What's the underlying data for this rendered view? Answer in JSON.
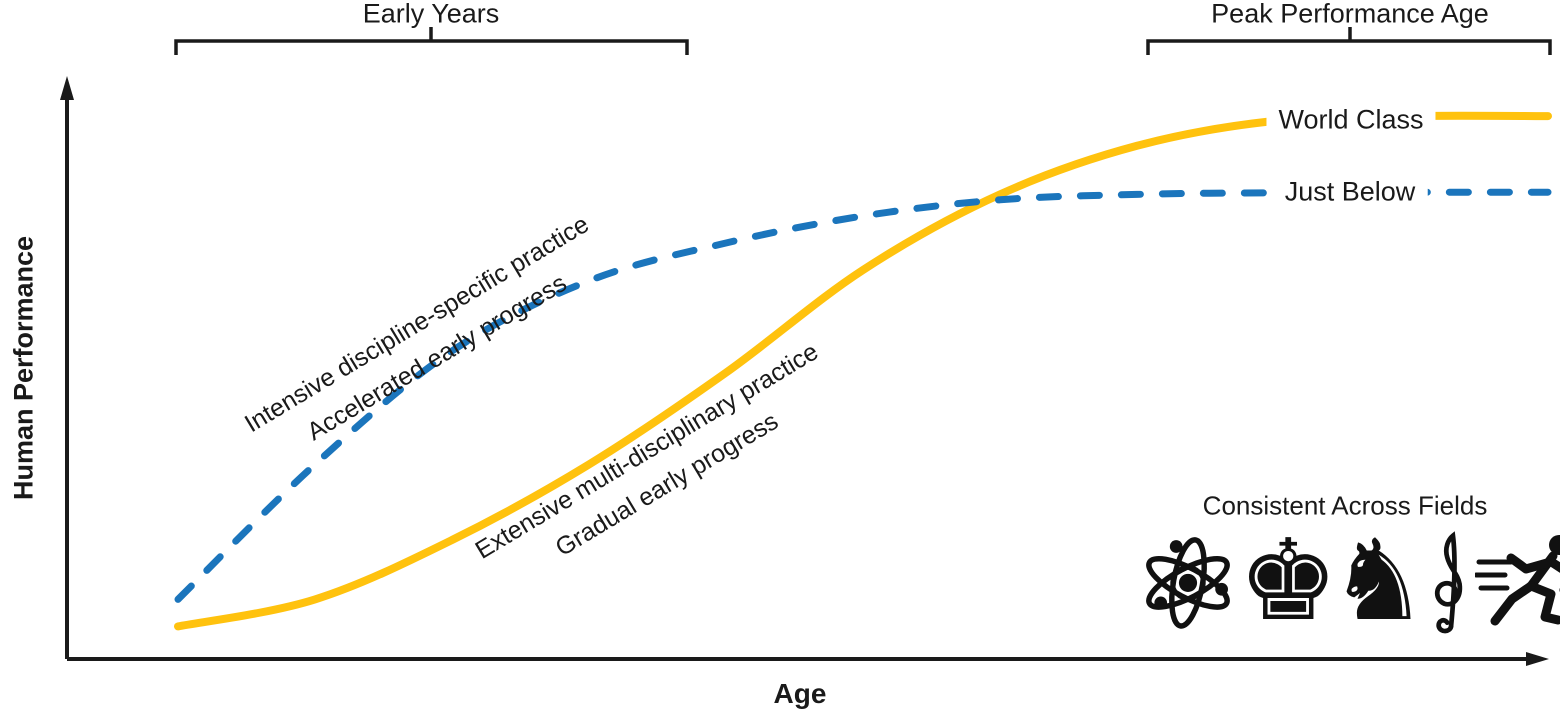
{
  "chart_data": {
    "type": "line",
    "title": "",
    "xlabel": "Age",
    "ylabel": "Human Performance",
    "axes_note": "conceptual diagram, no numeric ticks; x normalized 0-100 (age), y normalized 0-1 (performance)",
    "grid": false,
    "legend_position": "inline-right",
    "series": [
      {
        "name": "World Class",
        "style": "solid",
        "color": "#FFC20E",
        "annotation_lines": [
          "Extensive multi-disciplinary practice",
          "Gradual early progress"
        ],
        "x": [
          0,
          10,
          20,
          30,
          40,
          50,
          60,
          70,
          80,
          90,
          100
        ],
        "y": [
          0.04,
          0.09,
          0.2,
          0.34,
          0.51,
          0.7,
          0.84,
          0.93,
          0.976,
          0.985,
          0.985
        ]
      },
      {
        "name": "Just Below",
        "style": "dashed",
        "color": "#1B75BC",
        "annotation_lines": [
          "Intensive discipline-specific practice",
          "Accelerated early progress"
        ],
        "x": [
          0,
          10,
          20,
          30,
          40,
          50,
          60,
          70,
          80,
          90,
          100
        ],
        "y": [
          0.09,
          0.34,
          0.55,
          0.68,
          0.75,
          0.8,
          0.83,
          0.84,
          0.843,
          0.844,
          0.844
        ]
      }
    ],
    "annotations": [
      {
        "label": "Early Years",
        "type": "bracket",
        "x_range": [
          0,
          37
        ],
        "position": "top"
      },
      {
        "label": "Peak Performance Age",
        "type": "bracket",
        "x_range": [
          71,
          100
        ],
        "position": "top"
      },
      {
        "label": "Consistent Across Fields",
        "type": "icon-legend",
        "position": "bottom-right"
      }
    ]
  },
  "axes": {
    "x_label": "Age",
    "y_label": "Human Performance"
  },
  "brackets": {
    "early_years": "Early Years",
    "peak_performance": "Peak Performance Age"
  },
  "curve_labels": {
    "world_class": "World Class",
    "just_below": "Just Below"
  },
  "blue_note": {
    "line1": "Intensive discipline-specific practice",
    "line2": "Accelerated early progress"
  },
  "yellow_note": {
    "line1": "Extensive multi-disciplinary practice",
    "line2": "Gradual early progress"
  },
  "fields_legend": {
    "title": "Consistent Across Fields",
    "icons": [
      "atom-icon",
      "chess-icon",
      "treble-clef-icon",
      "runner-icon"
    ],
    "chess_king_glyph": "♚",
    "chess_knight_glyph": "♞"
  },
  "colors": {
    "world_class": "#FFC20E",
    "just_below": "#1B75BC",
    "ink": "#1a1a1a"
  }
}
